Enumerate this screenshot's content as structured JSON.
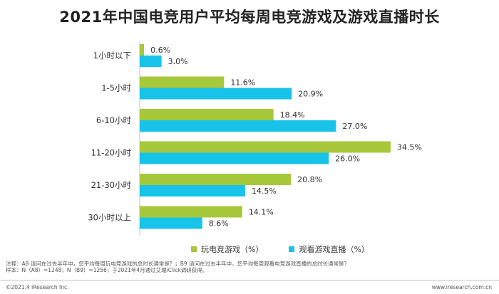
{
  "title": "2021年中国电竞用户平均每周电竞游戏及游戏直播时长",
  "chart_data": {
    "type": "bar",
    "orientation": "horizontal",
    "title": "2021年中国电竞用户平均每周电竞游戏及游戏直播时长",
    "categories": [
      "1小时以下",
      "1-5小时",
      "6-10小时",
      "11-20小时",
      "21-30小时",
      "30小时以上"
    ],
    "series": [
      {
        "name": "玩电竞游戏（%）",
        "color": "#a6c83a",
        "values": [
          0.6,
          11.6,
          18.4,
          34.5,
          20.8,
          14.1
        ],
        "labels": [
          "0.6%",
          "11.6%",
          "18.4%",
          "34.5%",
          "20.8%",
          "14.1%"
        ]
      },
      {
        "name": "观看游戏直播（%）",
        "color": "#17c3e8",
        "values": [
          3.0,
          20.9,
          27.0,
          26.0,
          14.5,
          8.6
        ],
        "labels": [
          "3.0%",
          "20.9%",
          "27.0%",
          "26.0%",
          "14.5%",
          "8.6%"
        ]
      }
    ],
    "xlim": [
      0,
      36
    ],
    "grid": false,
    "legend_position": "bottom"
  },
  "notes": {
    "line1": "注释：A8 请问在过去半年中，您平均每周玩电竞游戏的总时长通常是？；B9 请问在过去半年中，您平均每周观看电竞游戏直播的总时长通常是？",
    "line2": "样本：N（A8）=1248，N（B9）=1256；于2021年4月通过艾瑞iClick调研获得。"
  },
  "footer": {
    "copyright": "©2021.4 iResearch Inc.",
    "website": "www.iresearch.com.cn"
  }
}
